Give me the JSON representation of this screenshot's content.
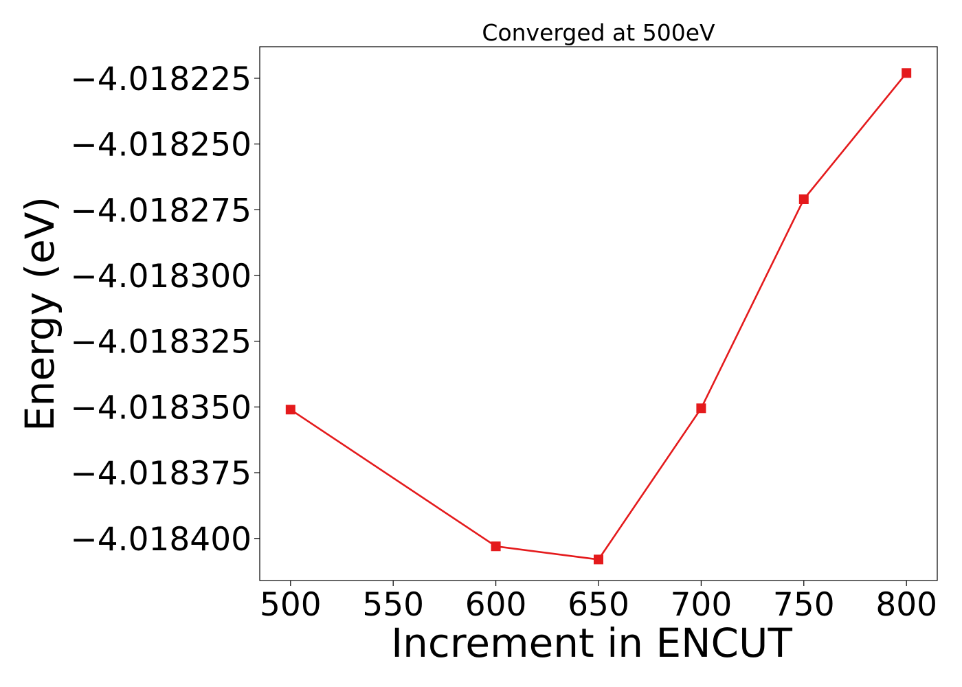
{
  "colors": {
    "series": "#e41a1c",
    "axes": "#000000",
    "background": "#ffffff"
  },
  "chart_data": {
    "type": "line",
    "title": "Converged at 500eV",
    "xlabel": "Increment in ENCUT",
    "ylabel": "Energy (eV)",
    "x": [
      500,
      600,
      650,
      700,
      750,
      800
    ],
    "series": [
      {
        "values": [
          -4.018351,
          -4.018403,
          -4.018408,
          -4.0183505,
          -4.018271,
          -4.018223
        ],
        "marker": "square"
      }
    ],
    "xlim": [
      485,
      815
    ],
    "ylim": [
      -4.018416,
      -4.018213
    ],
    "xticks": [
      500,
      550,
      600,
      650,
      700,
      750,
      800
    ],
    "xtick_labels": [
      "500",
      "550",
      "600",
      "650",
      "700",
      "750",
      "800"
    ],
    "yticks": [
      -4.018225,
      -4.01825,
      -4.018275,
      -4.0183,
      -4.018325,
      -4.01835,
      -4.018375,
      -4.0184
    ],
    "ytick_labels": [
      "−4.018225",
      "−4.018250",
      "−4.018275",
      "−4.018300",
      "−4.018325",
      "−4.018350",
      "−4.018375",
      "−4.018400"
    ],
    "grid": false,
    "legend": "none"
  }
}
